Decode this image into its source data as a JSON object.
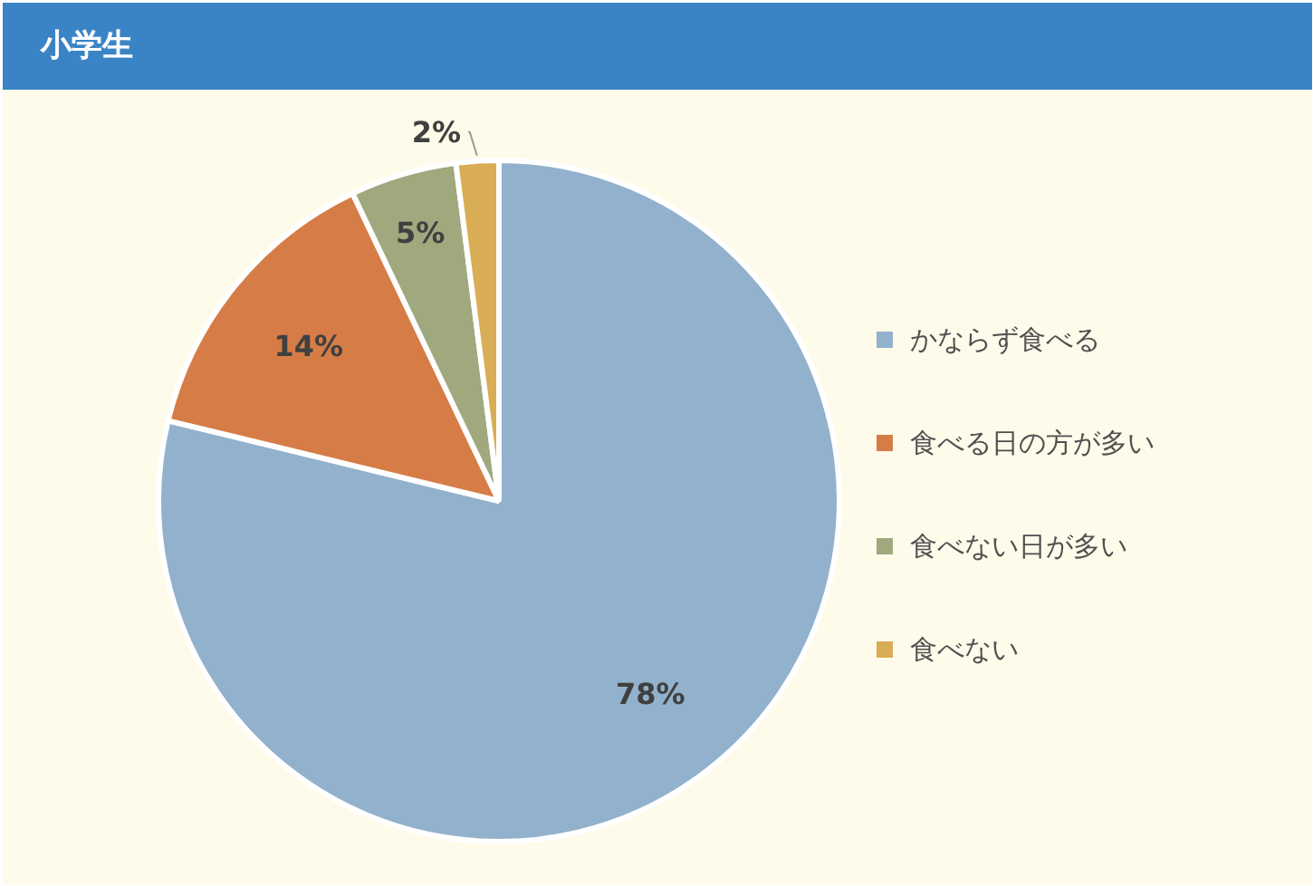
{
  "chart_data": {
    "type": "pie",
    "title": "小学生",
    "categories": [
      "かならず食べる",
      "食べる日の方が多い",
      "食べない日が多い",
      "食べない"
    ],
    "values": [
      78,
      14,
      5,
      2
    ],
    "colors": [
      "#92b1cc",
      "#d67d47",
      "#a0a87e",
      "#d8ad55"
    ],
    "value_labels": [
      "78%",
      "14%",
      "5%",
      "2%"
    ],
    "legend": "right"
  }
}
